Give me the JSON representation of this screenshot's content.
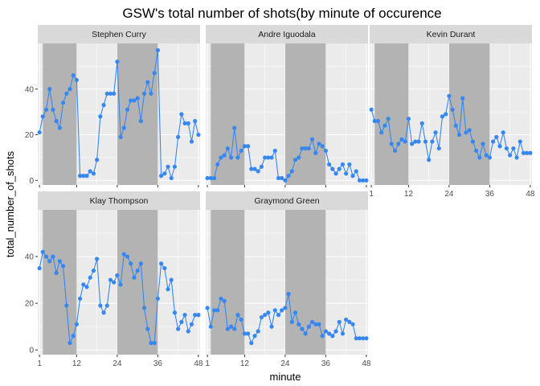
{
  "chart_data": {
    "type": "line",
    "title": "GSW's total number of shots(by minute of occurence",
    "xlabel": "minute",
    "ylabel": "total_number_of_shots",
    "xlim": [
      0.5,
      48.5
    ],
    "ylim": [
      -2,
      60
    ],
    "x_ticks": [
      1,
      12,
      24,
      36,
      48
    ],
    "y_ticks": [
      0,
      20,
      40
    ],
    "shaded_quarters": [
      [
        2,
        12
      ],
      [
        24,
        36
      ]
    ],
    "colors": {
      "line": "#3787f1",
      "panel_bg": "#ebebeb",
      "shade": "#b3b3b3",
      "strip": "#d9d9d9",
      "grid": "#ffffff"
    },
    "x": [
      1,
      2,
      3,
      4,
      5,
      6,
      7,
      8,
      9,
      10,
      11,
      12,
      13,
      14,
      15,
      16,
      17,
      18,
      19,
      20,
      21,
      22,
      23,
      24,
      25,
      26,
      27,
      28,
      29,
      30,
      31,
      32,
      33,
      34,
      35,
      36,
      37,
      38,
      39,
      40,
      41,
      42,
      43,
      44,
      45,
      46,
      47,
      48
    ],
    "series": [
      {
        "name": "Stephen Curry",
        "values": [
          21,
          28,
          31,
          40,
          31,
          26,
          23,
          34,
          38,
          40,
          46,
          44,
          2,
          2,
          2,
          4,
          3,
          9,
          28,
          33,
          38,
          38,
          38,
          52,
          19,
          23,
          31,
          35,
          35,
          36,
          26,
          38,
          43,
          38,
          47,
          57,
          2,
          3,
          6,
          1,
          6,
          19,
          29,
          25,
          25,
          17,
          26,
          20
        ]
      },
      {
        "name": "Andre Iguodala",
        "values": [
          1,
          1,
          1,
          7,
          10,
          11,
          14,
          10,
          23,
          10,
          13,
          15,
          15,
          5,
          5,
          4,
          6,
          10,
          10,
          10,
          13,
          1,
          1,
          0,
          2,
          4,
          9,
          10,
          14,
          14,
          14,
          18,
          12,
          16,
          15,
          13,
          7,
          5,
          3,
          5,
          7,
          3,
          7,
          2,
          4,
          0,
          0,
          0
        ]
      },
      {
        "name": "Kevin Durant",
        "values": [
          31,
          26,
          26,
          21,
          24,
          27,
          16,
          13,
          16,
          18,
          17,
          27,
          16,
          17,
          17,
          25,
          17,
          9,
          17,
          21,
          14,
          28,
          29,
          37,
          31,
          24,
          20,
          36,
          21,
          22,
          17,
          13,
          10,
          16,
          11,
          10,
          17,
          19,
          15,
          21,
          14,
          11,
          14,
          10,
          17,
          12,
          12,
          12
        ]
      },
      {
        "name": "Klay Thompson",
        "values": [
          35,
          42,
          40,
          38,
          40,
          33,
          38,
          36,
          19,
          3,
          6,
          11,
          22,
          28,
          27,
          31,
          34,
          39,
          19,
          16,
          19,
          30,
          29,
          32,
          28,
          41,
          40,
          37,
          31,
          34,
          37,
          18,
          9,
          3,
          3,
          22,
          37,
          35,
          26,
          30,
          16,
          9,
          12,
          15,
          8,
          11,
          15,
          15
        ]
      },
      {
        "name": "Graymond Green",
        "values": [
          18,
          10,
          17,
          17,
          22,
          21,
          9,
          10,
          9,
          15,
          13,
          7,
          7,
          3,
          6,
          8,
          14,
          15,
          16,
          10,
          17,
          15,
          17,
          18,
          24,
          12,
          16,
          11,
          9,
          7,
          10,
          12,
          11,
          11,
          6,
          8,
          7,
          6,
          8,
          12,
          7,
          13,
          12,
          11,
          5,
          5,
          5,
          5
        ]
      }
    ]
  }
}
